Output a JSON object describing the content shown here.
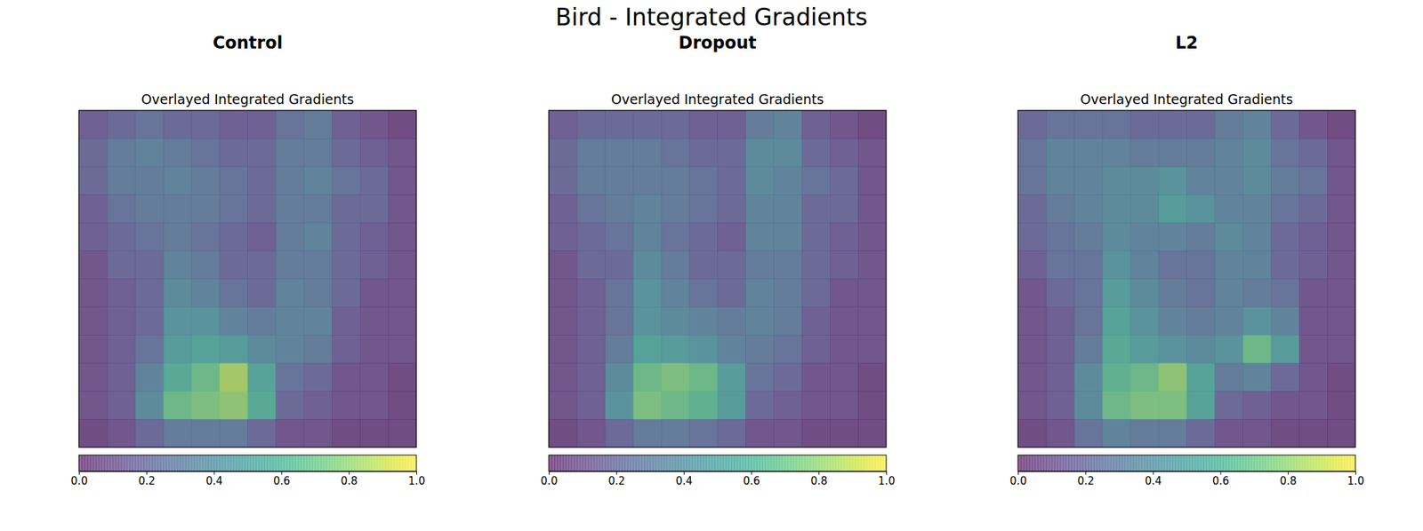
{
  "title": "Bird - Integrated Gradients",
  "chart_data": [
    {
      "type": "heatmap",
      "title": "Control",
      "subtitle": "Overlayed Integrated Gradients",
      "tick_labels": false,
      "values": [
        [
          0.15,
          0.2,
          0.25,
          0.2,
          0.2,
          0.15,
          0.15,
          0.25,
          0.3,
          0.15,
          0.1,
          0.05
        ],
        [
          0.2,
          0.3,
          0.35,
          0.3,
          0.25,
          0.2,
          0.2,
          0.3,
          0.3,
          0.2,
          0.15,
          0.1
        ],
        [
          0.2,
          0.3,
          0.3,
          0.35,
          0.3,
          0.25,
          0.2,
          0.3,
          0.35,
          0.25,
          0.2,
          0.1
        ],
        [
          0.15,
          0.25,
          0.3,
          0.3,
          0.3,
          0.25,
          0.2,
          0.3,
          0.3,
          0.2,
          0.2,
          0.1
        ],
        [
          0.15,
          0.2,
          0.25,
          0.3,
          0.25,
          0.2,
          0.15,
          0.3,
          0.35,
          0.2,
          0.15,
          0.1
        ],
        [
          0.1,
          0.2,
          0.2,
          0.35,
          0.3,
          0.2,
          0.2,
          0.3,
          0.3,
          0.2,
          0.15,
          0.1
        ],
        [
          0.1,
          0.15,
          0.2,
          0.4,
          0.35,
          0.25,
          0.2,
          0.35,
          0.3,
          0.2,
          0.1,
          0.1
        ],
        [
          0.1,
          0.15,
          0.2,
          0.45,
          0.45,
          0.35,
          0.3,
          0.35,
          0.35,
          0.15,
          0.1,
          0.1
        ],
        [
          0.1,
          0.15,
          0.25,
          0.5,
          0.55,
          0.5,
          0.4,
          0.35,
          0.3,
          0.15,
          0.1,
          0.1
        ],
        [
          0.1,
          0.15,
          0.35,
          0.6,
          0.7,
          0.85,
          0.55,
          0.25,
          0.2,
          0.1,
          0.1,
          0.05
        ],
        [
          0.1,
          0.15,
          0.4,
          0.7,
          0.75,
          0.8,
          0.6,
          0.2,
          0.15,
          0.1,
          0.1,
          0.05
        ],
        [
          0.05,
          0.1,
          0.2,
          0.3,
          0.3,
          0.3,
          0.2,
          0.1,
          0.1,
          0.05,
          0.05,
          0.05
        ]
      ],
      "colorbar": {
        "range": [
          0,
          1
        ],
        "ticks": [
          {
            "value": 0,
            "label": "0.0"
          },
          0.2,
          0.4,
          0.6,
          0.8,
          {
            "value": 1,
            "label": "1.0"
          }
        ]
      }
    },
    {
      "type": "heatmap",
      "title": "Dropout",
      "subtitle": "Overlayed Integrated Gradients",
      "tick_labels": false,
      "values": [
        [
          0.15,
          0.2,
          0.2,
          0.2,
          0.2,
          0.15,
          0.15,
          0.3,
          0.35,
          0.15,
          0.1,
          0.05
        ],
        [
          0.2,
          0.3,
          0.3,
          0.3,
          0.25,
          0.2,
          0.2,
          0.4,
          0.4,
          0.2,
          0.15,
          0.1
        ],
        [
          0.2,
          0.3,
          0.3,
          0.3,
          0.3,
          0.25,
          0.2,
          0.4,
          0.35,
          0.25,
          0.2,
          0.1
        ],
        [
          0.15,
          0.25,
          0.3,
          0.35,
          0.3,
          0.25,
          0.2,
          0.35,
          0.35,
          0.2,
          0.2,
          0.1
        ],
        [
          0.15,
          0.2,
          0.25,
          0.35,
          0.25,
          0.2,
          0.15,
          0.35,
          0.35,
          0.2,
          0.15,
          0.1
        ],
        [
          0.1,
          0.2,
          0.2,
          0.4,
          0.3,
          0.2,
          0.2,
          0.3,
          0.3,
          0.2,
          0.15,
          0.1
        ],
        [
          0.1,
          0.15,
          0.25,
          0.45,
          0.35,
          0.25,
          0.2,
          0.35,
          0.3,
          0.2,
          0.1,
          0.1
        ],
        [
          0.1,
          0.15,
          0.25,
          0.45,
          0.4,
          0.35,
          0.3,
          0.35,
          0.3,
          0.15,
          0.1,
          0.1
        ],
        [
          0.1,
          0.15,
          0.3,
          0.55,
          0.5,
          0.45,
          0.35,
          0.3,
          0.25,
          0.15,
          0.1,
          0.1
        ],
        [
          0.1,
          0.15,
          0.4,
          0.7,
          0.75,
          0.7,
          0.5,
          0.25,
          0.2,
          0.1,
          0.1,
          0.05
        ],
        [
          0.1,
          0.15,
          0.45,
          0.75,
          0.7,
          0.65,
          0.5,
          0.2,
          0.15,
          0.1,
          0.1,
          0.05
        ],
        [
          0.05,
          0.1,
          0.2,
          0.3,
          0.3,
          0.25,
          0.2,
          0.1,
          0.1,
          0.05,
          0.05,
          0.05
        ]
      ],
      "colorbar": {
        "range": [
          0,
          1
        ],
        "ticks": [
          {
            "value": 0,
            "label": "0.0"
          },
          0.2,
          0.4,
          0.6,
          0.8,
          {
            "value": 1,
            "label": "1.0"
          }
        ]
      }
    },
    {
      "type": "heatmap",
      "title": "L2",
      "subtitle": "Overlayed Integrated Gradients",
      "tick_labels": false,
      "values": [
        [
          0.2,
          0.25,
          0.25,
          0.25,
          0.2,
          0.2,
          0.2,
          0.3,
          0.35,
          0.2,
          0.1,
          0.05
        ],
        [
          0.25,
          0.35,
          0.35,
          0.35,
          0.3,
          0.3,
          0.3,
          0.35,
          0.4,
          0.25,
          0.2,
          0.1
        ],
        [
          0.25,
          0.35,
          0.35,
          0.4,
          0.4,
          0.45,
          0.35,
          0.35,
          0.4,
          0.3,
          0.25,
          0.1
        ],
        [
          0.2,
          0.3,
          0.35,
          0.4,
          0.4,
          0.5,
          0.45,
          0.35,
          0.35,
          0.25,
          0.2,
          0.1
        ],
        [
          0.2,
          0.25,
          0.3,
          0.4,
          0.35,
          0.35,
          0.3,
          0.4,
          0.35,
          0.2,
          0.15,
          0.1
        ],
        [
          0.15,
          0.25,
          0.25,
          0.45,
          0.35,
          0.25,
          0.25,
          0.35,
          0.35,
          0.2,
          0.15,
          0.1
        ],
        [
          0.1,
          0.2,
          0.25,
          0.5,
          0.4,
          0.3,
          0.25,
          0.35,
          0.3,
          0.25,
          0.1,
          0.1
        ],
        [
          0.1,
          0.15,
          0.25,
          0.55,
          0.45,
          0.35,
          0.3,
          0.35,
          0.45,
          0.35,
          0.1,
          0.1
        ],
        [
          0.1,
          0.15,
          0.3,
          0.6,
          0.5,
          0.45,
          0.4,
          0.45,
          0.7,
          0.5,
          0.1,
          0.1
        ],
        [
          0.1,
          0.15,
          0.4,
          0.65,
          0.7,
          0.8,
          0.55,
          0.3,
          0.35,
          0.2,
          0.1,
          0.05
        ],
        [
          0.1,
          0.15,
          0.4,
          0.7,
          0.75,
          0.75,
          0.55,
          0.2,
          0.15,
          0.1,
          0.1,
          0.05
        ],
        [
          0.05,
          0.1,
          0.25,
          0.35,
          0.3,
          0.3,
          0.2,
          0.1,
          0.1,
          0.05,
          0.05,
          0.05
        ]
      ],
      "colorbar": {
        "range": [
          0,
          1
        ],
        "ticks": [
          {
            "value": 0,
            "label": "0.0"
          },
          0.2,
          0.4,
          0.6,
          0.8,
          {
            "value": 1,
            "label": "1.0"
          }
        ]
      }
    }
  ]
}
